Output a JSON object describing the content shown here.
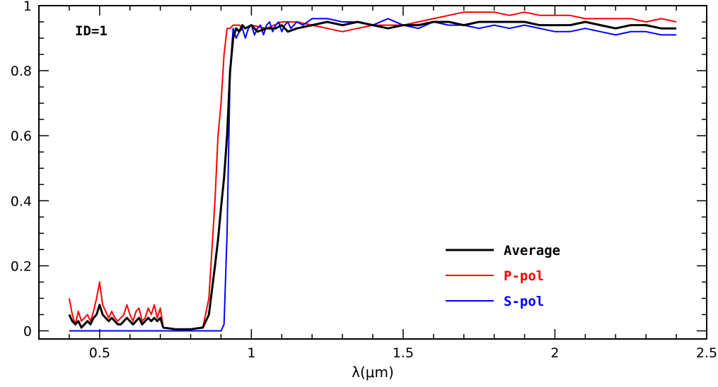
{
  "chart_data": {
    "type": "line",
    "title": "",
    "xlabel": "λ(μm)",
    "ylabel": "",
    "xlim": [
      0.3,
      2.5
    ],
    "ylim": [
      -0.025,
      1.0
    ],
    "xticks": [
      0.5,
      1,
      1.5,
      2,
      2.5
    ],
    "xtick_labels": [
      "0.5",
      "1",
      "1.5",
      "2",
      "2.5"
    ],
    "yticks": [
      0,
      0.2,
      0.4,
      0.6,
      0.8,
      1
    ],
    "ytick_labels": [
      "0",
      "0.2",
      "0.4",
      "0.6",
      "0.8",
      "1"
    ],
    "annotation": "ID=1",
    "legend_position": "lower-right",
    "grid": false,
    "series": [
      {
        "name": "Average",
        "color": "#000000",
        "x": [
          0.4,
          0.41,
          0.42,
          0.43,
          0.44,
          0.45,
          0.46,
          0.47,
          0.48,
          0.49,
          0.5,
          0.51,
          0.52,
          0.53,
          0.54,
          0.55,
          0.56,
          0.57,
          0.58,
          0.59,
          0.6,
          0.61,
          0.62,
          0.63,
          0.64,
          0.65,
          0.66,
          0.67,
          0.68,
          0.69,
          0.7,
          0.71,
          0.75,
          0.8,
          0.84,
          0.86,
          0.88,
          0.89,
          0.9,
          0.91,
          0.92,
          0.93,
          0.94,
          0.95,
          0.96,
          0.97,
          0.98,
          1.0,
          1.02,
          1.05,
          1.08,
          1.1,
          1.12,
          1.15,
          1.2,
          1.25,
          1.3,
          1.35,
          1.4,
          1.45,
          1.5,
          1.55,
          1.6,
          1.65,
          1.7,
          1.75,
          1.8,
          1.85,
          1.9,
          1.95,
          2.0,
          2.05,
          2.1,
          2.15,
          2.2,
          2.25,
          2.3,
          2.35,
          2.4
        ],
        "y": [
          0.05,
          0.03,
          0.02,
          0.03,
          0.01,
          0.02,
          0.03,
          0.02,
          0.04,
          0.05,
          0.08,
          0.05,
          0.04,
          0.03,
          0.04,
          0.03,
          0.02,
          0.02,
          0.03,
          0.04,
          0.03,
          0.02,
          0.03,
          0.04,
          0.02,
          0.03,
          0.04,
          0.03,
          0.04,
          0.03,
          0.04,
          0.01,
          0.005,
          0.005,
          0.01,
          0.05,
          0.2,
          0.28,
          0.38,
          0.47,
          0.6,
          0.8,
          0.9,
          0.93,
          0.92,
          0.94,
          0.93,
          0.94,
          0.92,
          0.93,
          0.93,
          0.94,
          0.92,
          0.93,
          0.94,
          0.95,
          0.94,
          0.95,
          0.94,
          0.93,
          0.94,
          0.94,
          0.95,
          0.95,
          0.94,
          0.95,
          0.95,
          0.95,
          0.95,
          0.94,
          0.94,
          0.94,
          0.95,
          0.94,
          0.93,
          0.94,
          0.94,
          0.93,
          0.93
        ]
      },
      {
        "name": "P-pol",
        "color": "#ff0000",
        "x": [
          0.4,
          0.41,
          0.42,
          0.43,
          0.44,
          0.45,
          0.46,
          0.47,
          0.48,
          0.49,
          0.5,
          0.51,
          0.52,
          0.53,
          0.54,
          0.55,
          0.56,
          0.57,
          0.58,
          0.59,
          0.6,
          0.61,
          0.62,
          0.63,
          0.64,
          0.65,
          0.66,
          0.67,
          0.68,
          0.69,
          0.7,
          0.71,
          0.75,
          0.8,
          0.84,
          0.86,
          0.88,
          0.89,
          0.9,
          0.91,
          0.92,
          0.93,
          0.94,
          0.95,
          0.96,
          0.98,
          1.0,
          1.05,
          1.1,
          1.15,
          1.2,
          1.25,
          1.3,
          1.35,
          1.4,
          1.45,
          1.5,
          1.55,
          1.6,
          1.65,
          1.7,
          1.75,
          1.8,
          1.85,
          1.9,
          1.95,
          2.0,
          2.05,
          2.1,
          2.15,
          2.2,
          2.25,
          2.3,
          2.35,
          2.4
        ],
        "y": [
          0.1,
          0.05,
          0.02,
          0.06,
          0.03,
          0.04,
          0.05,
          0.03,
          0.06,
          0.1,
          0.15,
          0.08,
          0.06,
          0.04,
          0.06,
          0.04,
          0.03,
          0.04,
          0.05,
          0.08,
          0.05,
          0.03,
          0.06,
          0.07,
          0.03,
          0.04,
          0.07,
          0.05,
          0.08,
          0.04,
          0.07,
          0.01,
          0.005,
          0.005,
          0.01,
          0.1,
          0.4,
          0.6,
          0.7,
          0.85,
          0.93,
          0.93,
          0.94,
          0.94,
          0.94,
          0.93,
          0.94,
          0.93,
          0.95,
          0.95,
          0.94,
          0.93,
          0.92,
          0.93,
          0.94,
          0.94,
          0.94,
          0.95,
          0.96,
          0.97,
          0.98,
          0.98,
          0.98,
          0.97,
          0.98,
          0.97,
          0.97,
          0.97,
          0.96,
          0.96,
          0.96,
          0.96,
          0.95,
          0.96,
          0.95
        ]
      },
      {
        "name": "S-pol",
        "color": "#0000ff",
        "x": [
          0.4,
          0.5,
          0.6,
          0.7,
          0.8,
          0.86,
          0.88,
          0.89,
          0.9,
          0.91,
          0.92,
          0.93,
          0.94,
          0.95,
          0.96,
          0.97,
          0.98,
          0.99,
          1.0,
          1.01,
          1.02,
          1.03,
          1.04,
          1.05,
          1.06,
          1.07,
          1.08,
          1.09,
          1.1,
          1.11,
          1.12,
          1.13,
          1.14,
          1.15,
          1.17,
          1.2,
          1.25,
          1.3,
          1.35,
          1.4,
          1.45,
          1.5,
          1.55,
          1.6,
          1.65,
          1.7,
          1.75,
          1.8,
          1.85,
          1.9,
          1.95,
          2.0,
          2.05,
          2.1,
          2.15,
          2.2,
          2.25,
          2.3,
          2.35,
          2.4
        ],
        "y": [
          0.0,
          0.0,
          0.0,
          0.0,
          0.0,
          0.0,
          0.0,
          0.0,
          0.0,
          0.02,
          0.3,
          0.8,
          0.93,
          0.9,
          0.92,
          0.93,
          0.9,
          0.93,
          0.94,
          0.91,
          0.93,
          0.94,
          0.91,
          0.94,
          0.95,
          0.92,
          0.94,
          0.95,
          0.92,
          0.94,
          0.95,
          0.93,
          0.94,
          0.95,
          0.94,
          0.96,
          0.96,
          0.95,
          0.95,
          0.94,
          0.96,
          0.94,
          0.93,
          0.95,
          0.94,
          0.94,
          0.93,
          0.94,
          0.93,
          0.94,
          0.93,
          0.92,
          0.92,
          0.93,
          0.92,
          0.91,
          0.92,
          0.92,
          0.91,
          0.91
        ]
      }
    ]
  }
}
